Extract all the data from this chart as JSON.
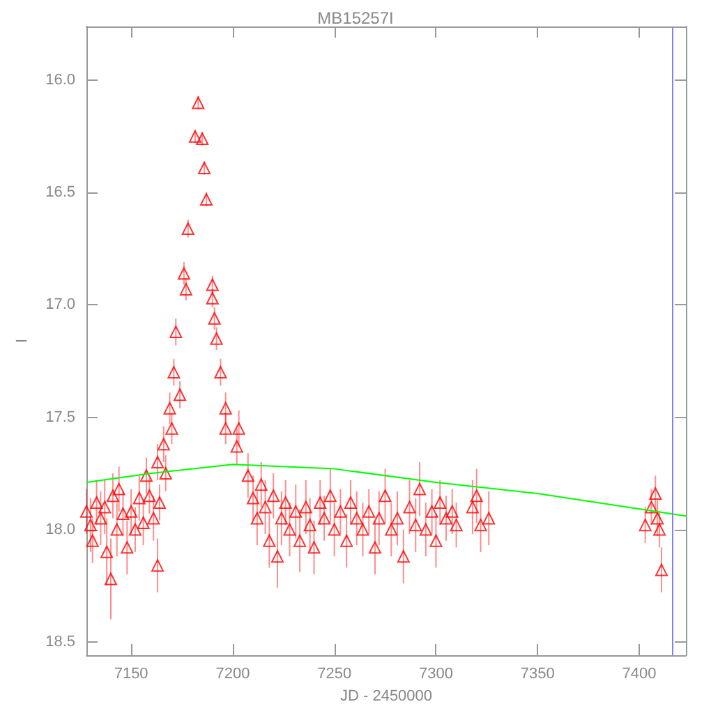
{
  "chart_data": {
    "type": "scatter",
    "title": "MB15257I",
    "xlabel": "JD - 2450000",
    "ylabel": "I",
    "xlim": [
      7128,
      7423
    ],
    "xticks": [
      7150,
      7200,
      7250,
      7300,
      7350,
      7400
    ],
    "ylim": [
      18.56,
      15.76
    ],
    "yticks": [
      {
        "value": 16,
        "label": "16.0"
      },
      {
        "value": 16.5,
        "label": "16.5"
      },
      {
        "value": 17,
        "label": "17.0"
      },
      {
        "value": 17.5,
        "label": "17.5"
      },
      {
        "value": 18,
        "label": "18.0"
      },
      {
        "value": 18.5,
        "label": "18.5"
      }
    ],
    "grid": false,
    "ref_lines": [
      {
        "axis": "x",
        "value": 7416,
        "color": "#8080ff"
      }
    ],
    "series": [
      {
        "marker": "triangle",
        "color": "#ff0000",
        "x": [
          7128,
          7130,
          7131,
          7133,
          7135,
          7137,
          7138,
          7140,
          7141,
          7143,
          7144,
          7146,
          7148,
          7150,
          7152,
          7154,
          7156,
          7157.5,
          7159,
          7161,
          7163,
          7163,
          7164,
          7166,
          7167,
          7169,
          7170,
          7171,
          7172,
          7174,
          7176,
          7177,
          7178,
          7181.5,
          7183,
          7185,
          7186,
          7187,
          7190,
          7190,
          7191,
          7192,
          7194,
          7196.5,
          7196.5,
          7202,
          7203,
          7207.5,
          7210,
          7212,
          7214,
          7216,
          7218,
          7220,
          7222,
          7224,
          7226,
          7228,
          7231,
          7233,
          7236,
          7238,
          7240,
          7243,
          7245,
          7248,
          7250,
          7253,
          7256,
          7258,
          7261,
          7264,
          7267,
          7270,
          7272,
          7275,
          7278,
          7281,
          7284,
          7287,
          7290,
          7292,
          7295,
          7298,
          7300,
          7302,
          7305,
          7308,
          7310,
          7318,
          7320,
          7322,
          7326,
          7403,
          7406,
          7408,
          7409,
          7410,
          7411
        ],
        "values": [
          17.92,
          17.98,
          18.05,
          17.88,
          17.95,
          17.9,
          18.1,
          18.22,
          17.85,
          18.0,
          17.82,
          17.93,
          18.08,
          17.92,
          18.0,
          17.86,
          17.97,
          17.76,
          17.85,
          17.95,
          17.7,
          18.16,
          17.88,
          17.62,
          17.75,
          17.46,
          17.55,
          17.3,
          17.12,
          17.4,
          16.86,
          16.93,
          16.66,
          16.25,
          16.1,
          16.26,
          16.39,
          16.53,
          16.91,
          16.97,
          17.06,
          17.15,
          17.3,
          17.46,
          17.55,
          17.63,
          17.55,
          17.76,
          17.86,
          17.95,
          17.8,
          17.9,
          18.05,
          17.85,
          18.12,
          17.95,
          17.88,
          18.0,
          17.92,
          18.05,
          17.9,
          17.98,
          18.08,
          17.88,
          17.95,
          17.85,
          18.0,
          17.92,
          18.05,
          17.88,
          17.95,
          18.0,
          17.92,
          18.08,
          17.95,
          17.85,
          18.0,
          17.95,
          18.12,
          17.9,
          17.98,
          17.82,
          18.0,
          17.92,
          18.05,
          17.88,
          17.95,
          17.92,
          17.98,
          17.9,
          17.85,
          17.98,
          17.95,
          17.98,
          17.9,
          17.84,
          17.95,
          18.0,
          18.18
        ],
        "errors": [
          0.1,
          0.12,
          0.1,
          0.1,
          0.12,
          0.12,
          0.15,
          0.18,
          0.1,
          0.12,
          0.1,
          0.1,
          0.12,
          0.1,
          0.1,
          0.1,
          0.1,
          0.08,
          0.08,
          0.1,
          0.08,
          0.12,
          0.08,
          0.08,
          0.08,
          0.07,
          0.07,
          0.06,
          0.06,
          0.06,
          0.05,
          0.05,
          0.04,
          0.03,
          0.03,
          0.03,
          0.03,
          0.03,
          0.04,
          0.04,
          0.05,
          0.05,
          0.06,
          0.07,
          0.07,
          0.08,
          0.08,
          0.1,
          0.1,
          0.12,
          0.1,
          0.12,
          0.12,
          0.1,
          0.14,
          0.12,
          0.1,
          0.12,
          0.12,
          0.14,
          0.12,
          0.12,
          0.12,
          0.1,
          0.1,
          0.12,
          0.12,
          0.1,
          0.12,
          0.1,
          0.12,
          0.12,
          0.1,
          0.12,
          0.12,
          0.12,
          0.12,
          0.12,
          0.12,
          0.12,
          0.12,
          0.12,
          0.12,
          0.1,
          0.12,
          0.1,
          0.1,
          0.1,
          0.1,
          0.12,
          0.12,
          0.12,
          0.12,
          0.08,
          0.08,
          0.08,
          0.08,
          0.08,
          0.1
        ]
      },
      {
        "type": "line",
        "color": "#00ff00",
        "x": [
          7128,
          7160,
          7200,
          7250,
          7300,
          7350,
          7423
        ],
        "values": [
          17.79,
          17.75,
          17.71,
          17.73,
          17.79,
          17.84,
          17.94
        ]
      }
    ]
  }
}
